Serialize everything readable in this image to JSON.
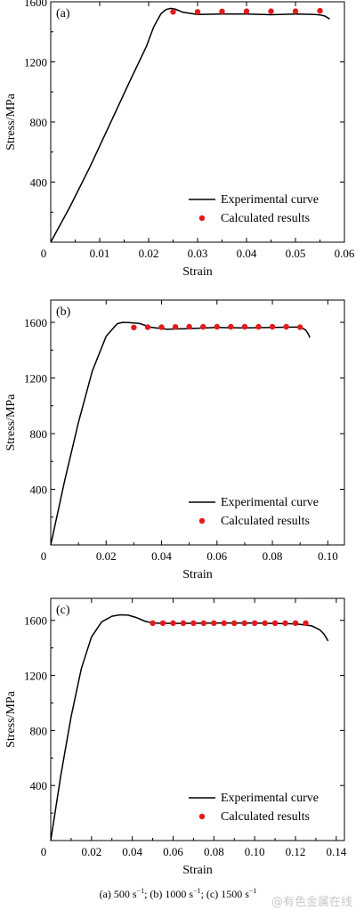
{
  "chart_data": [
    {
      "type": "line",
      "panel_label": "(a)",
      "xlabel": "Strain",
      "ylabel": "Stress/MPa",
      "xlim": [
        0,
        0.06
      ],
      "ylim": [
        0,
        1600
      ],
      "x_ticks": [
        "0",
        "0.01",
        "0.02",
        "0.03",
        "0.04",
        "0.05",
        "0.06"
      ],
      "y_ticks": [
        "400",
        "800",
        "1200",
        "1600"
      ],
      "grid": false,
      "legend_position": "bottom-right",
      "series": [
        {
          "name": "Experimental curve",
          "style": "line",
          "color": "#000000",
          "x": [
            0,
            0.004,
            0.008,
            0.012,
            0.016,
            0.0195,
            0.021,
            0.0225,
            0.0235,
            0.0245,
            0.0255,
            0.027,
            0.03,
            0.035,
            0.04,
            0.045,
            0.05,
            0.054,
            0.055,
            0.056,
            0.0565,
            0.057
          ],
          "y": [
            0,
            240,
            500,
            780,
            1060,
            1300,
            1430,
            1520,
            1548,
            1556,
            1550,
            1530,
            1515,
            1518,
            1519,
            1514,
            1518,
            1516,
            1513,
            1505,
            1495,
            1485
          ]
        },
        {
          "name": "Calculated results",
          "style": "scatter",
          "color": "#e31a1c",
          "x": [
            0.025,
            0.03,
            0.035,
            0.04,
            0.045,
            0.05,
            0.055
          ],
          "y": [
            1533,
            1533,
            1536,
            1537,
            1537,
            1537,
            1540
          ]
        }
      ]
    },
    {
      "type": "line",
      "panel_label": "(b)",
      "xlabel": "Strain",
      "ylabel": "Stress/MPa",
      "xlim": [
        0,
        0.106
      ],
      "ylim": [
        0,
        1760
      ],
      "x_ticks": [
        "0",
        "0.02",
        "0.04",
        "0.06",
        "0.08",
        "0.10"
      ],
      "y_ticks": [
        "400",
        "800",
        "1200",
        "1600"
      ],
      "grid": false,
      "legend_position": "bottom-right",
      "series": [
        {
          "name": "Experimental curve",
          "style": "line",
          "color": "#000000",
          "x": [
            0,
            0.005,
            0.01,
            0.015,
            0.02,
            0.024,
            0.026,
            0.028,
            0.032,
            0.036,
            0.042,
            0.05,
            0.06,
            0.07,
            0.08,
            0.09,
            0.092,
            0.093,
            0.0935
          ],
          "y": [
            0,
            460,
            880,
            1250,
            1500,
            1590,
            1600,
            1598,
            1592,
            1565,
            1550,
            1555,
            1563,
            1560,
            1563,
            1566,
            1545,
            1515,
            1490
          ]
        },
        {
          "name": "Calculated results",
          "style": "scatter",
          "color": "#e31a1c",
          "x": [
            0.03,
            0.035,
            0.04,
            0.045,
            0.05,
            0.055,
            0.06,
            0.065,
            0.07,
            0.075,
            0.08,
            0.085,
            0.09
          ],
          "y": [
            1563,
            1565,
            1565,
            1567,
            1568,
            1568,
            1568,
            1568,
            1568,
            1568,
            1568,
            1568,
            1565
          ]
        }
      ]
    },
    {
      "type": "line",
      "panel_label": "(c)",
      "xlabel": "Strain",
      "ylabel": "Stress/MPa",
      "xlim": [
        0,
        0.144
      ],
      "ylim": [
        0,
        1760
      ],
      "x_ticks": [
        "0",
        "0.02",
        "0.04",
        "0.06",
        "0.08",
        "0.10",
        "0.12",
        "0.14"
      ],
      "y_ticks": [
        "400",
        "800",
        "1200",
        "1600"
      ],
      "grid": false,
      "legend_position": "bottom-right",
      "series": [
        {
          "name": "Experimental curve",
          "style": "line",
          "color": "#000000",
          "x": [
            0,
            0.005,
            0.01,
            0.015,
            0.02,
            0.025,
            0.03,
            0.034,
            0.038,
            0.042,
            0.046,
            0.05,
            0.06,
            0.08,
            0.1,
            0.12,
            0.128,
            0.132,
            0.134,
            0.136
          ],
          "y": [
            0,
            480,
            900,
            1250,
            1480,
            1590,
            1630,
            1640,
            1638,
            1620,
            1595,
            1580,
            1578,
            1580,
            1580,
            1575,
            1560,
            1530,
            1500,
            1450
          ]
        },
        {
          "name": "Calculated results",
          "style": "scatter",
          "color": "#e31a1c",
          "x": [
            0.05,
            0.055,
            0.06,
            0.065,
            0.07,
            0.075,
            0.08,
            0.085,
            0.09,
            0.095,
            0.1,
            0.105,
            0.11,
            0.115,
            0.12,
            0.125
          ],
          "y": [
            1580,
            1580,
            1580,
            1580,
            1580,
            1580,
            1580,
            1580,
            1580,
            1580,
            1580,
            1580,
            1580,
            1580,
            1580,
            1580
          ]
        }
      ]
    }
  ],
  "caption": {
    "a_text": "(a) 500 s",
    "b_text": "; (b) 1000 s",
    "c_text": "; (c) 1500 s",
    "exponent": "−1"
  },
  "watermark": "@有色金属在线"
}
